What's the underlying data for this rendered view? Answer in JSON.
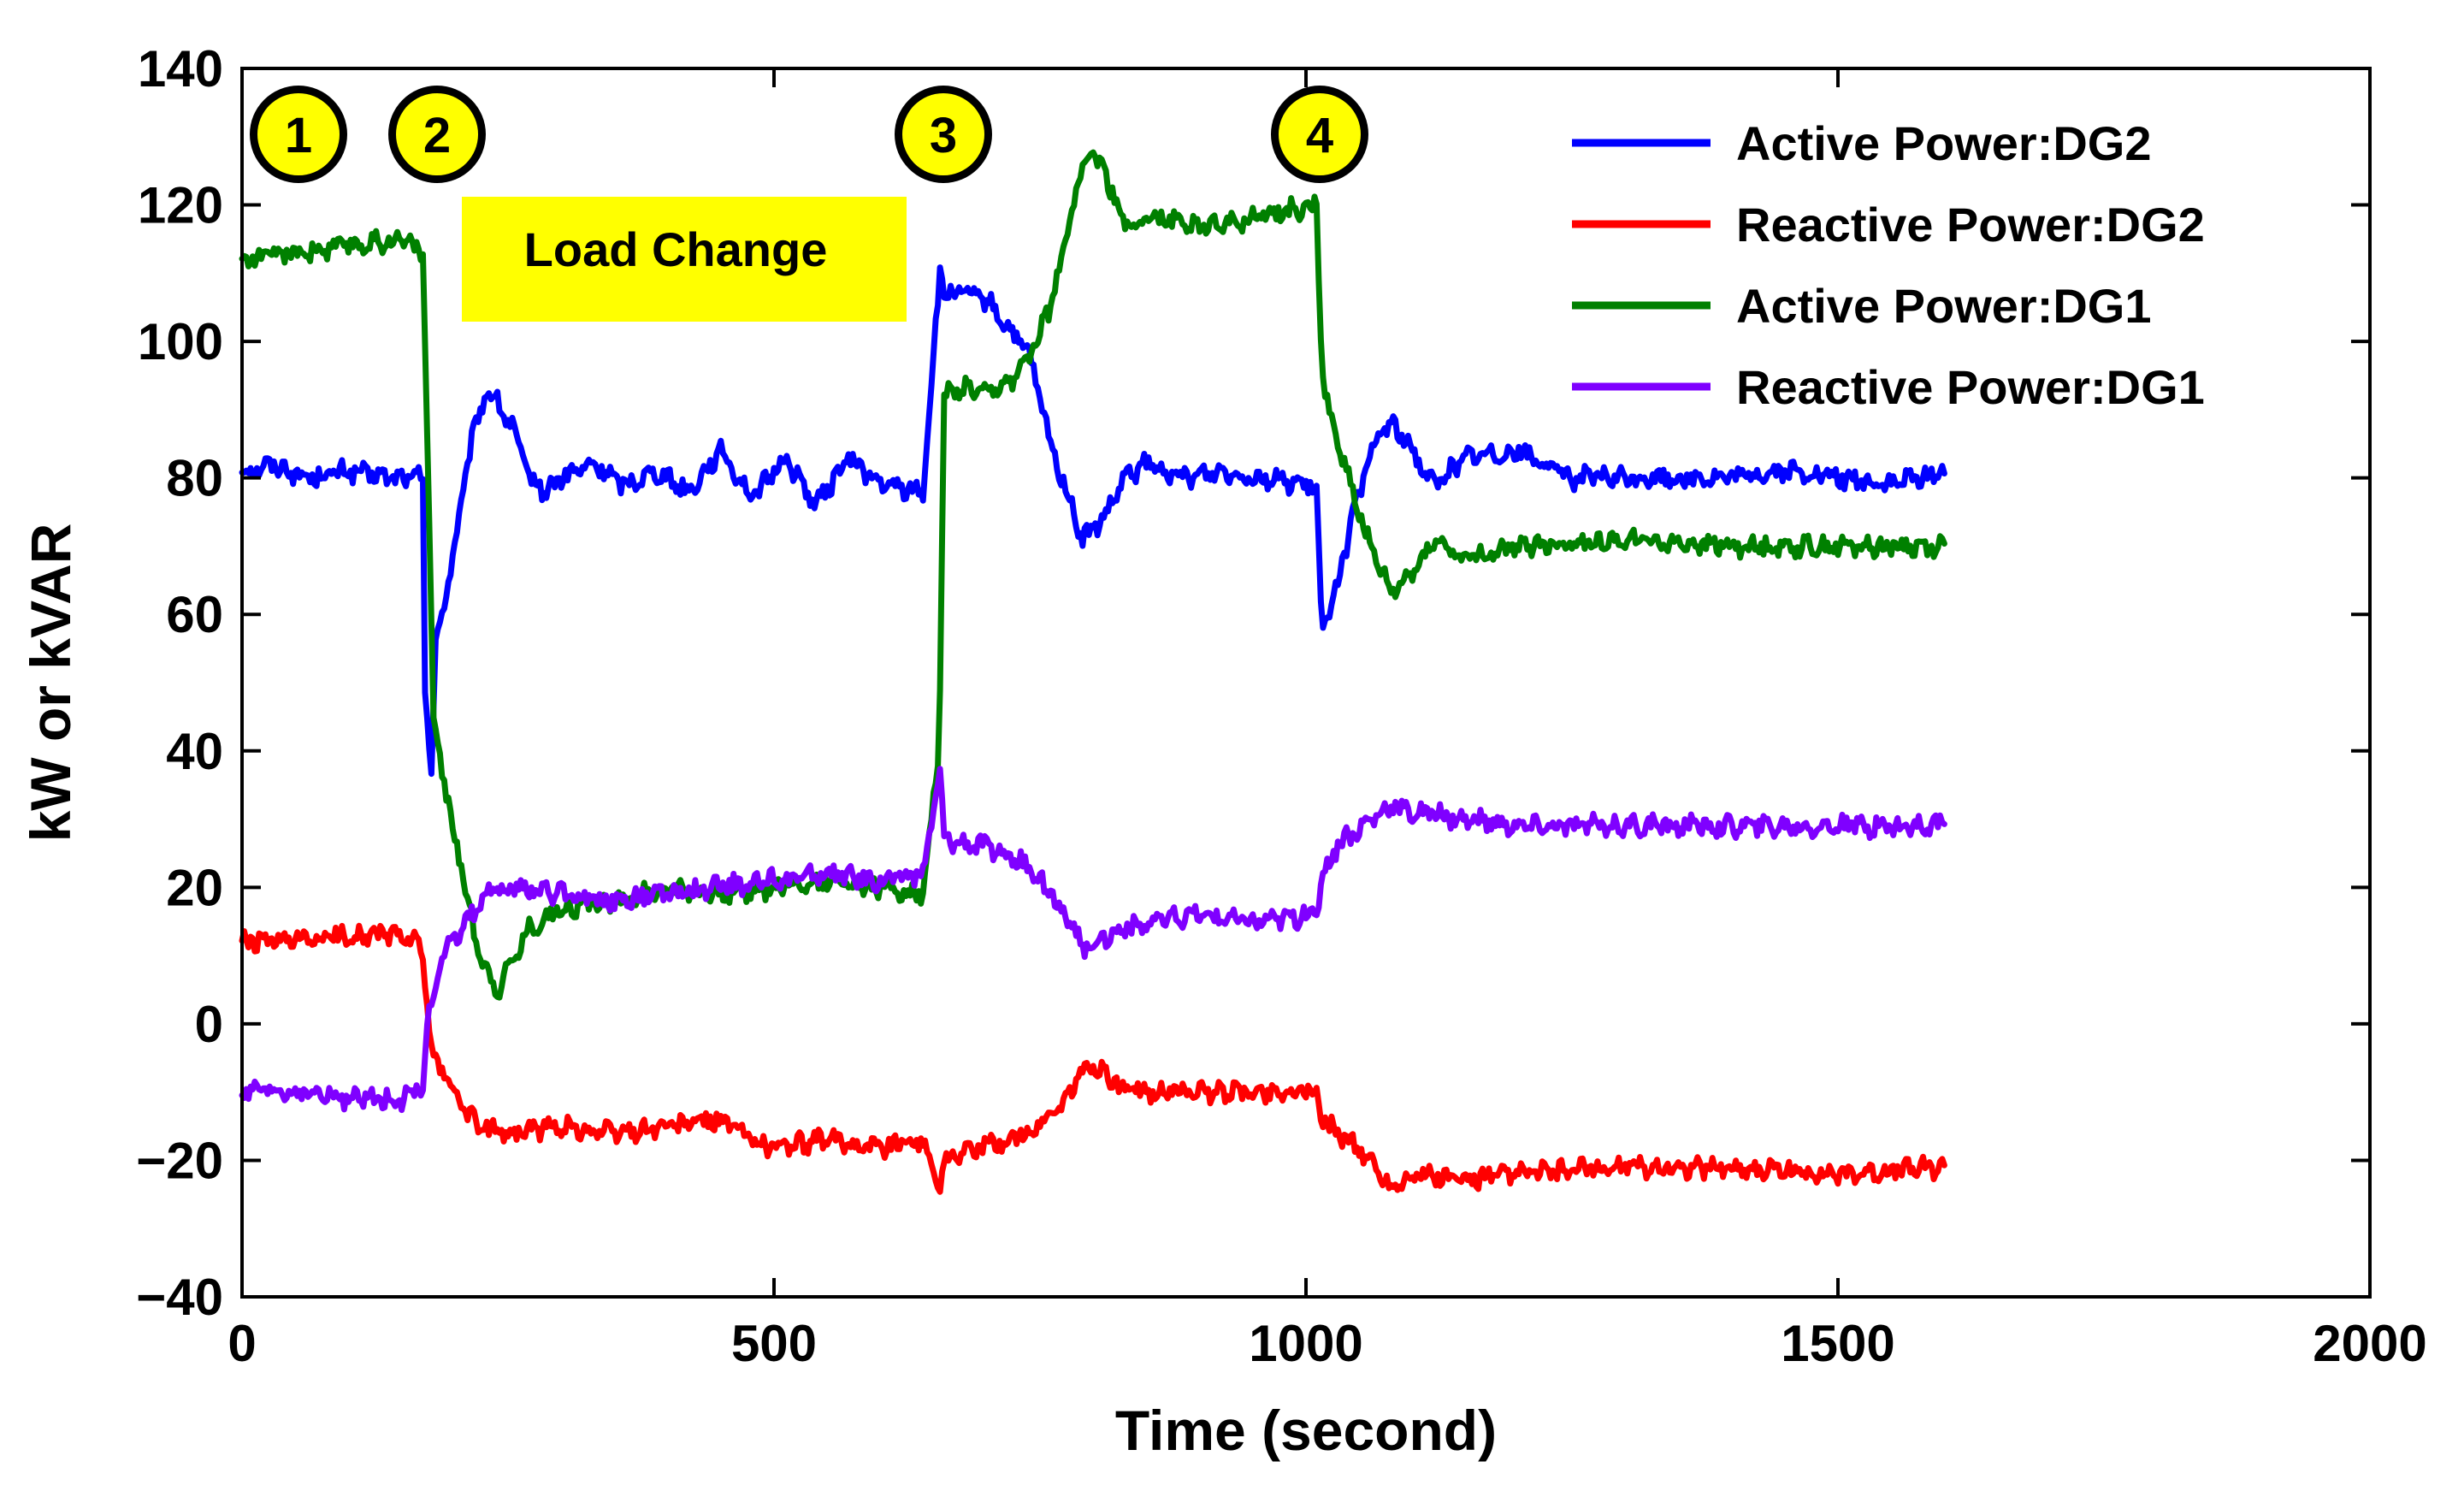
{
  "chart_data": {
    "type": "line",
    "title": "",
    "xlabel": "Time (second)",
    "ylabel": "kW or kVAR",
    "xlim": [
      0,
      2000
    ],
    "ylim": [
      -40,
      140
    ],
    "xticks": [
      0,
      500,
      1000,
      1500,
      2000
    ],
    "xtick_labels": [
      "0",
      "500",
      "1000",
      "1500",
      "2000"
    ],
    "yticks": [
      140,
      120,
      100,
      80,
      60,
      40,
      20,
      0,
      -20,
      -40
    ],
    "ytick_labels": [
      "140",
      "120",
      "100",
      "80",
      "60",
      "40",
      "20",
      "0",
      "−20",
      "−40"
    ],
    "grid": false,
    "legend_position": "top-right",
    "series": [
      {
        "name": "Active Power:DG2",
        "color": "#0000ff",
        "x": [
          0,
          30,
          60,
          100,
          140,
          170,
          172,
          178,
          182,
          190,
          200,
          215,
          230,
          240,
          255,
          270,
          285,
          300,
          330,
          360,
          390,
          420,
          450,
          480,
          510,
          540,
          570,
          600,
          640,
          656,
          660,
          680,
          700,
          740,
          760,
          790,
          810,
          830,
          850,
          880,
          920,
          960,
          1000,
          1010,
          1015,
          1020,
          1030,
          1050,
          1070,
          1080,
          1100,
          1120,
          1150,
          1200,
          1250,
          1300,
          1350,
          1400,
          1450,
          1500,
          1550,
          1600
        ],
        "y": [
          81,
          82,
          80,
          81,
          80,
          80,
          50,
          37,
          55,
          62,
          70,
          85,
          93,
          91,
          87,
          80,
          78,
          80,
          82,
          79,
          81,
          78,
          84,
          77,
          83,
          76,
          83,
          79,
          78,
          110,
          107,
          107,
          106,
          98,
          85,
          71,
          74,
          80,
          82,
          80,
          81,
          80,
          79,
          78,
          57,
          60,
          65,
          78,
          87,
          88,
          84,
          79,
          83,
          84,
          80,
          80,
          80,
          80,
          81,
          80,
          79,
          81
        ]
      },
      {
        "name": "Reactive Power:DG2",
        "color": "#ff0000",
        "x": [
          0,
          50,
          100,
          150,
          170,
          175,
          180,
          200,
          220,
          250,
          300,
          350,
          400,
          450,
          480,
          500,
          550,
          600,
          640,
          656,
          660,
          670,
          700,
          740,
          770,
          795,
          810,
          830,
          900,
          960,
          1010,
          1015,
          1040,
          1060,
          1080,
          1100,
          1150,
          1200,
          1300,
          1400,
          1500,
          1600
        ],
        "y": [
          12,
          12,
          13,
          13,
          11,
          0,
          -5,
          -10,
          -15,
          -16,
          -15,
          -16,
          -15,
          -14,
          -17,
          -18,
          -17,
          -18,
          -17,
          -24,
          -20,
          -19,
          -18,
          -16,
          -12,
          -6,
          -7,
          -10,
          -10,
          -10,
          -10,
          -14,
          -17,
          -20,
          -24,
          -22,
          -23,
          -22,
          -21,
          -21,
          -22,
          -21
        ]
      },
      {
        "name": "Active Power:DG1",
        "color": "#008000",
        "x": [
          0,
          50,
          100,
          150,
          170,
          172,
          180,
          190,
          210,
          220,
          230,
          240,
          250,
          270,
          300,
          350,
          400,
          450,
          500,
          550,
          600,
          640,
          655,
          660,
          680,
          700,
          730,
          760,
          780,
          795,
          810,
          830,
          860,
          900,
          950,
          1010,
          1015,
          1025,
          1040,
          1060,
          1080,
          1100,
          1120,
          1150,
          1200,
          1300,
          1400,
          1500,
          1600
        ],
        "y": [
          112,
          113,
          114,
          115,
          113,
          100,
          45,
          35,
          20,
          12,
          8,
          5,
          8,
          14,
          17,
          18,
          20,
          19,
          20,
          21,
          20,
          19,
          40,
          92,
          93,
          92,
          95,
          105,
          120,
          128,
          125,
          117,
          118,
          117,
          118,
          120,
          95,
          88,
          80,
          70,
          63,
          66,
          71,
          68,
          70,
          71,
          70,
          70,
          70
        ]
      },
      {
        "name": "Reactive Power:DG1",
        "color": "#7f00ff",
        "x": [
          0,
          50,
          100,
          150,
          170,
          175,
          180,
          190,
          210,
          230,
          260,
          300,
          350,
          400,
          450,
          500,
          550,
          600,
          640,
          656,
          660,
          700,
          740,
          760,
          780,
          790,
          800,
          830,
          860,
          900,
          950,
          1010,
          1015,
          1030,
          1060,
          1080,
          1100,
          1150,
          1200,
          1300,
          1400,
          1500,
          1600
        ],
        "y": [
          -10,
          -10,
          -11,
          -11,
          -9,
          0,
          5,
          10,
          15,
          19,
          20,
          19,
          18,
          19,
          20,
          21,
          22,
          21,
          22,
          37,
          27,
          26,
          23,
          19,
          14,
          11,
          12,
          14,
          15,
          16,
          15,
          16,
          22,
          26,
          30,
          32,
          31,
          30,
          29,
          29,
          29,
          29,
          29
        ]
      }
    ],
    "annotations": {
      "markers": [
        {
          "label": "1",
          "x": 50,
          "fill": "#ffff00"
        },
        {
          "label": "2",
          "x": 185,
          "fill": "#ffff00"
        },
        {
          "label": "3",
          "x": 665,
          "fill": "#ffff00"
        },
        {
          "label": "4",
          "x": 1015,
          "fill": "#ffff00"
        }
      ],
      "box": {
        "label": "Load Change",
        "fill": "#ffff00"
      }
    }
  }
}
